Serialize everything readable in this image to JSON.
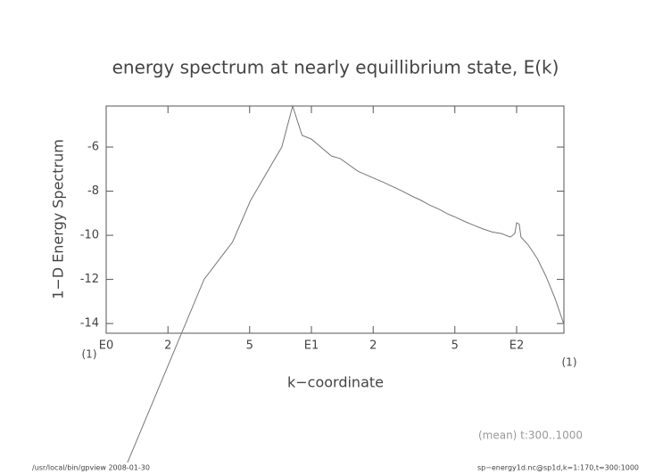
{
  "chart_data": {
    "type": "line",
    "title": "energy spectrum at nearly equillibrium state, E(k)",
    "x_label": "k−coordinate",
    "y_label": "1−D Energy Spectrum",
    "x_units": [
      "(1)",
      "(1)"
    ],
    "annotation": "(mean) t:300..1000",
    "footer_left": "/usr/local/bin/gpview   2008-01-30",
    "footer_right": "sp−energy1d.nc@sp1d,k=1:170,t=300:1000",
    "xlog": true,
    "color": "#777777",
    "xlim": [
      1,
      170
    ],
    "ylim": [
      -14.44,
      -4.14
    ],
    "xticks": [
      {
        "value": 1,
        "label": "E0"
      },
      {
        "value": 2,
        "label": "2"
      },
      {
        "value": 5,
        "label": "5"
      },
      {
        "value": 10,
        "label": "E1"
      },
      {
        "value": 20,
        "label": "2"
      },
      {
        "value": 50,
        "label": "5"
      },
      {
        "value": 100,
        "label": "E2"
      }
    ],
    "yticks": [
      -6,
      -8,
      -10,
      -12,
      -14
    ],
    "x": [
      1.27,
      3.0,
      4.13,
      5.05,
      7.17,
      8.1,
      9.0,
      10,
      12.5,
      13.8,
      16.9,
      20.6,
      22.5,
      25.2,
      27.5,
      30.8,
      34,
      37.7,
      42,
      46.1,
      51,
      56.4,
      62,
      68.9,
      76,
      84.3,
      93.2,
      98,
      100,
      103,
      105,
      114,
      126,
      139,
      154,
      170
    ],
    "values": [
      -20.3,
      -12.0,
      -10.3,
      -8.42,
      -6.0,
      -4.14,
      -5.47,
      -5.64,
      -6.4,
      -6.52,
      -7.1,
      -7.45,
      -7.6,
      -7.82,
      -7.98,
      -8.22,
      -8.4,
      -8.63,
      -8.82,
      -9.03,
      -9.2,
      -9.39,
      -9.55,
      -9.72,
      -9.85,
      -9.92,
      -10.08,
      -9.92,
      -9.43,
      -9.5,
      -10.08,
      -10.44,
      -11.05,
      -11.86,
      -12.87,
      -14.04
    ]
  }
}
